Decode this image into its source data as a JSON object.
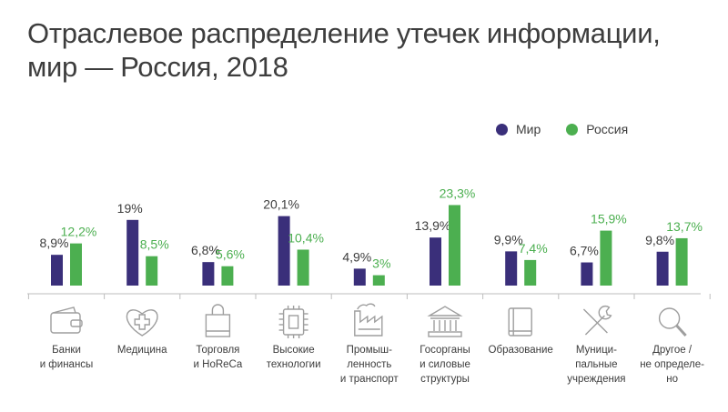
{
  "title_line1": "Отраслевое распределение утечек информации,",
  "title_line2": "мир — Россия, 2018",
  "colors": {
    "mir": "#3a2f7a",
    "russia": "#4caf50",
    "axis": "#bdbdbd",
    "icon": "#9e9e9e",
    "text": "#3d3d3d"
  },
  "chart_data": {
    "type": "bar",
    "title": "Отраслевое распределение утечек информации, мир — Россия, 2018",
    "legend_position": "top-right",
    "grid": false,
    "categories": [
      "Банки\nи финансы",
      "Медицина",
      "Торговля\nи HoReCa",
      "Высокие\nтехнологии",
      "Промыш-\nленность\nи транспорт",
      "Госорганы\nи силовые\nструктуры",
      "Образование",
      "Муници-\nпальные\nучреждения",
      "Другое /\nне определе-\nно"
    ],
    "icons": [
      "wallet-icon",
      "heart-cross-icon",
      "shopping-bag-icon",
      "chip-icon",
      "factory-icon",
      "government-building-icon",
      "book-icon",
      "tools-icon",
      "magnifier-icon"
    ],
    "series": [
      {
        "name": "Мир",
        "values": [
          8.9,
          19,
          6.8,
          20.1,
          4.9,
          13.9,
          9.9,
          6.7,
          9.8
        ],
        "labels": [
          "8,9%",
          "19%",
          "6,8%",
          "20,1%",
          "4,9%",
          "13,9%",
          "9,9%",
          "6,7%",
          "9,8%"
        ]
      },
      {
        "name": "Россия",
        "values": [
          12.2,
          8.5,
          5.6,
          10.4,
          3,
          23.3,
          7.4,
          15.9,
          13.7
        ],
        "labels": [
          "12,2%",
          "8,5%",
          "5,6%",
          "10,4%",
          "3%",
          "23,3%",
          "7,4%",
          "15,9%",
          "13,7%"
        ]
      }
    ],
    "ylim": [
      0,
      25
    ]
  }
}
